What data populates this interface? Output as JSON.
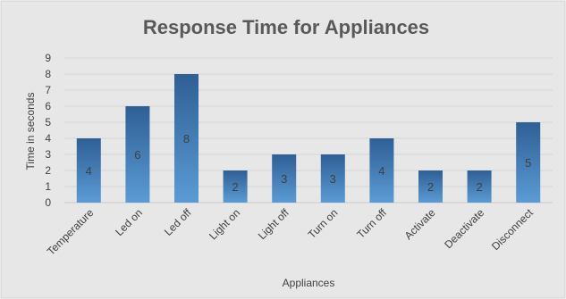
{
  "chart_data": {
    "type": "bar",
    "title": "Response Time for Appliances",
    "xlabel": "Appliances",
    "ylabel": "Time in seconds",
    "categories": [
      "Temperature",
      "Led on",
      "Led off",
      "Light on",
      "Light off",
      "Turn on",
      "Turn off",
      "Activate",
      "Deactivate",
      "Disconnect"
    ],
    "values": [
      4,
      6,
      8,
      2,
      3,
      3,
      4,
      2,
      2,
      5
    ],
    "ylim": [
      0,
      9
    ],
    "yticks": [
      "0",
      "1",
      "2",
      "3",
      "4",
      "5",
      "6",
      "7",
      "8",
      "9"
    ],
    "grid": true,
    "legend": "none",
    "colors": {
      "background": "#e7e7e7",
      "bar_top": "#2f5f95",
      "bar_bottom": "#5b9bd5",
      "grid": "#d4d4d4",
      "axis": "#c8c8c8"
    }
  }
}
